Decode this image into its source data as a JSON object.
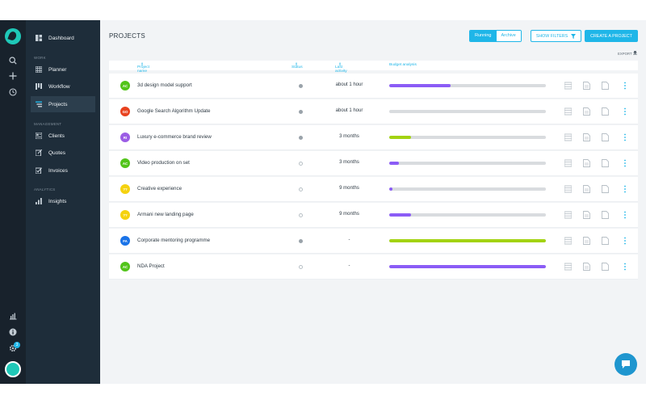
{
  "nav": {
    "sections": {
      "work": "WORK",
      "management": "MANAGEMENT",
      "analytics": "ANALYTICS"
    },
    "items": {
      "dashboard": "Dashboard",
      "planner": "Planner",
      "workflow": "Workflow",
      "projects": "Projects",
      "clients": "Clients",
      "quotes": "Quotes",
      "invoices": "Invoices",
      "insights": "Insights"
    },
    "active": "projects"
  },
  "rail": {
    "notification_count": "3",
    "icons": [
      "search-icon",
      "plus-icon",
      "clock-icon",
      "chart-icon",
      "info-icon",
      "gear-icon"
    ]
  },
  "page": {
    "title": "PROJECTS"
  },
  "toolbar": {
    "running": "Running",
    "archive": "Archive",
    "show_filters": "SHOW FILTERS",
    "create": "CREATE A PROJECT",
    "export": "EXPORT"
  },
  "table": {
    "headers": {
      "name": "Project name",
      "status": "Status",
      "activity": "Last activity",
      "budget": "Budget analysis"
    },
    "rows": [
      {
        "initials": "AC",
        "name": "3d design model support",
        "status": "active",
        "activity": "about 1 hour",
        "budget": 0.39,
        "budget_color": "#8b5cf6",
        "avatar_color": "#52c41a"
      },
      {
        "initials": "GO",
        "name": "Google Search Algorithm Update",
        "status": "active",
        "activity": "about 1 hour",
        "budget": 0.0,
        "budget_color": "#8b5cf6",
        "avatar_color": "#e8421f"
      },
      {
        "initials": "RI",
        "name": "Luxury e-commerce brand review",
        "status": "active",
        "activity": "3 months",
        "budget": 0.14,
        "budget_color": "#a3d312",
        "avatar_color": "#9b5de5"
      },
      {
        "initials": "AC",
        "name": "Video production on set",
        "status": "inactive",
        "activity": "3 months",
        "budget": 0.06,
        "budget_color": "#8b5cf6",
        "avatar_color": "#52c41a"
      },
      {
        "initials": "??",
        "name": "Creative experience",
        "status": "inactive",
        "activity": "9 months",
        "budget": 0.02,
        "budget_color": "#8b5cf6",
        "avatar_color": "#f5d20f"
      },
      {
        "initials": "??",
        "name": "Armani new landing page",
        "status": "inactive",
        "activity": "9 months",
        "budget": 0.14,
        "budget_color": "#8b5cf6",
        "avatar_color": "#f5d20f"
      },
      {
        "initials": "FA",
        "name": "Corporate mentoring programme",
        "status": "active",
        "activity": "-",
        "budget": 1.0,
        "budget_color": "#a3d312",
        "avatar_color": "#1a73e8"
      },
      {
        "initials": "AC",
        "name": "NDA Project",
        "status": "inactive",
        "activity": "-",
        "budget": 1.0,
        "budget_color": "#8b5cf6",
        "avatar_color": "#52c41a"
      }
    ]
  }
}
